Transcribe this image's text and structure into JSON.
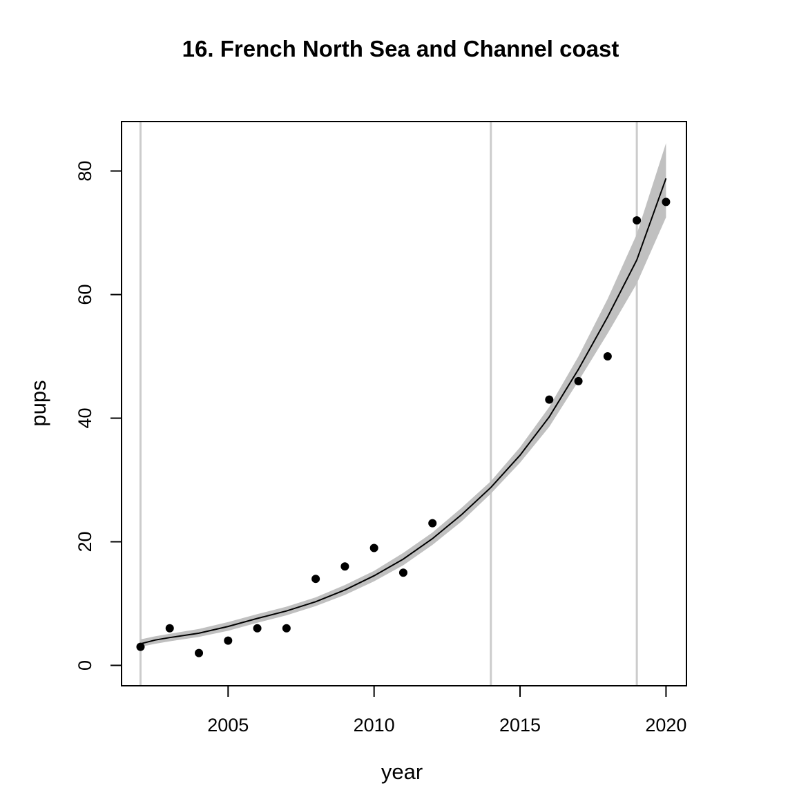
{
  "chart_data": {
    "type": "scatter",
    "title": "16. French North Sea and Channel coast",
    "xlabel": "year",
    "ylabel": "pups",
    "xlim": [
      2001.35,
      2020.7
    ],
    "ylim": [
      -3.3,
      88
    ],
    "x_ticks": [
      2005,
      2010,
      2015,
      2020
    ],
    "y_ticks": [
      0,
      20,
      40,
      60,
      80
    ],
    "x_tick_labels": [
      "2005",
      "2010",
      "2015",
      "2020"
    ],
    "y_tick_labels": [
      "0",
      "20",
      "40",
      "60",
      "80"
    ],
    "grid": false,
    "vertical_reference_lines": [
      2002,
      2014,
      2019
    ],
    "points": {
      "x": [
        2002,
        2003,
        2004,
        2005,
        2006,
        2007,
        2008,
        2009,
        2010,
        2011,
        2012,
        2016,
        2017,
        2018,
        2019,
        2020
      ],
      "y": [
        3,
        6,
        2,
        4,
        6,
        6,
        14,
        16,
        19,
        15,
        23,
        43,
        46,
        50,
        72,
        75
      ]
    },
    "fit": {
      "x": [
        2002,
        2002.5,
        2003,
        2004,
        2005,
        2006,
        2007,
        2008,
        2009,
        2010,
        2011,
        2012,
        2013,
        2014,
        2015,
        2016,
        2017,
        2018,
        2019,
        2020
      ],
      "y": [
        3.5,
        4.1,
        4.5,
        5.2,
        6.3,
        7.6,
        8.8,
        10.3,
        12.2,
        14.5,
        17.2,
        20.5,
        24.4,
        28.8,
        34.0,
        40.2,
        47.9,
        56.4,
        65.6,
        78.8
      ],
      "lower": [
        3.0,
        3.5,
        3.9,
        4.6,
        5.6,
        6.9,
        8.1,
        9.6,
        11.4,
        13.6,
        16.2,
        19.5,
        23.3,
        27.8,
        32.8,
        38.6,
        46.0,
        53.7,
        61.8,
        72.5
      ],
      "upper": [
        4.2,
        4.7,
        5.1,
        5.9,
        7.0,
        8.3,
        9.5,
        11.0,
        13.0,
        15.3,
        18.2,
        21.5,
        25.5,
        29.8,
        35.3,
        41.8,
        50.0,
        59.3,
        69.8,
        84.5
      ]
    },
    "colors": {
      "points": "#000000",
      "fit_line": "#000000",
      "band": "#c0c0c0",
      "reference_lines": "#cccccc"
    }
  }
}
